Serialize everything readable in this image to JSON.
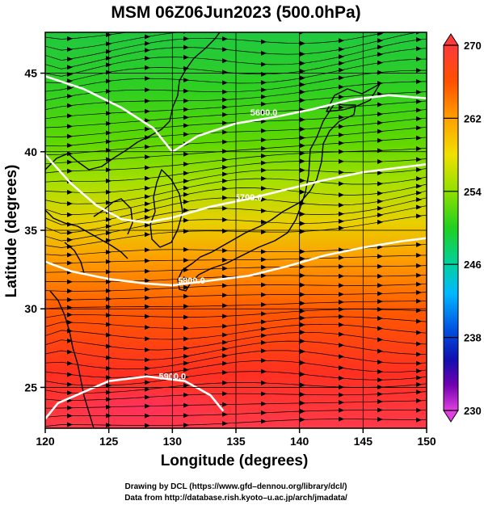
{
  "title": "MSM 06Z06Jun2023 (500.0hPa)",
  "x_axis": {
    "label": "Longitude (degrees)",
    "range": [
      120,
      150
    ],
    "ticks": [
      "120",
      "125",
      "130",
      "135",
      "140",
      "145",
      "150"
    ]
  },
  "y_axis": {
    "label": "Latitude  (degrees)",
    "range": [
      22.4,
      47.6
    ],
    "ticks": [
      "25",
      "30",
      "35",
      "40",
      "45"
    ]
  },
  "colorbar": {
    "min": 230,
    "max": 270,
    "labels": [
      "270",
      "262",
      "254",
      "246",
      "238",
      "230"
    ],
    "colors": [
      "#ff2a6d",
      "#ff0000",
      "#ff4c00",
      "#ffb000",
      "#c8ff00",
      "#34d800",
      "#00d8a0",
      "#00c8ff",
      "#0070ff",
      "#0020c0",
      "#2000a0",
      "#7000b0",
      "#c000c0",
      "#ff40ff"
    ]
  },
  "contours": [
    {
      "label": "5600.0",
      "points": [
        [
          120,
          44.8
        ],
        [
          123,
          44.0
        ],
        [
          126,
          42.8
        ],
        [
          128.5,
          41.5
        ],
        [
          130,
          40.0
        ],
        [
          132,
          41.0
        ],
        [
          135,
          41.8
        ],
        [
          138,
          42.2
        ],
        [
          141,
          42.7
        ],
        [
          144,
          43.3
        ],
        [
          147,
          43.6
        ],
        [
          150,
          43.4
        ]
      ]
    },
    {
      "label": "5700.0",
      "points": [
        [
          120,
          39.8
        ],
        [
          122,
          38.0
        ],
        [
          124,
          36.6
        ],
        [
          126,
          35.7
        ],
        [
          128,
          35.5
        ],
        [
          130,
          35.8
        ],
        [
          133,
          36.5
        ],
        [
          136,
          37.0
        ],
        [
          139,
          37.6
        ],
        [
          142,
          38.2
        ],
        [
          145,
          38.7
        ],
        [
          148,
          39.0
        ],
        [
          150,
          39.2
        ]
      ]
    },
    {
      "label": "5800.0",
      "points": [
        [
          120,
          33.0
        ],
        [
          122,
          32.4
        ],
        [
          125,
          31.9
        ],
        [
          128,
          31.6
        ],
        [
          130,
          31.5
        ],
        [
          133,
          31.8
        ],
        [
          136,
          32.1
        ],
        [
          139,
          32.7
        ],
        [
          142,
          33.4
        ],
        [
          145,
          33.9
        ],
        [
          148,
          34.3
        ],
        [
          150,
          34.5
        ]
      ]
    },
    {
      "label": "5900.0",
      "points": [
        [
          120,
          23.0
        ],
        [
          121,
          24.0
        ],
        [
          123,
          24.7
        ],
        [
          125,
          25.4
        ],
        [
          128,
          25.7
        ],
        [
          131,
          25.4
        ],
        [
          133,
          24.5
        ],
        [
          134,
          23.5
        ]
      ]
    }
  ],
  "contour_labels": [
    {
      "text": "5600.0",
      "lon": 137.2,
      "lat": 42.3
    },
    {
      "text": "5700.0",
      "lon": 136.0,
      "lat": 36.9
    },
    {
      "text": "5800.0",
      "lon": 131.5,
      "lat": 31.6
    },
    {
      "text": "5900.0",
      "lon": 130.0,
      "lat": 25.5
    }
  ],
  "footer": {
    "line1": "Drawing by DCL (https://www.gfd–dennou.org/library/dcl/)",
    "line2": "Data from http://database.rish.kyoto–u.ac.jp/arch/jmadata/"
  }
}
